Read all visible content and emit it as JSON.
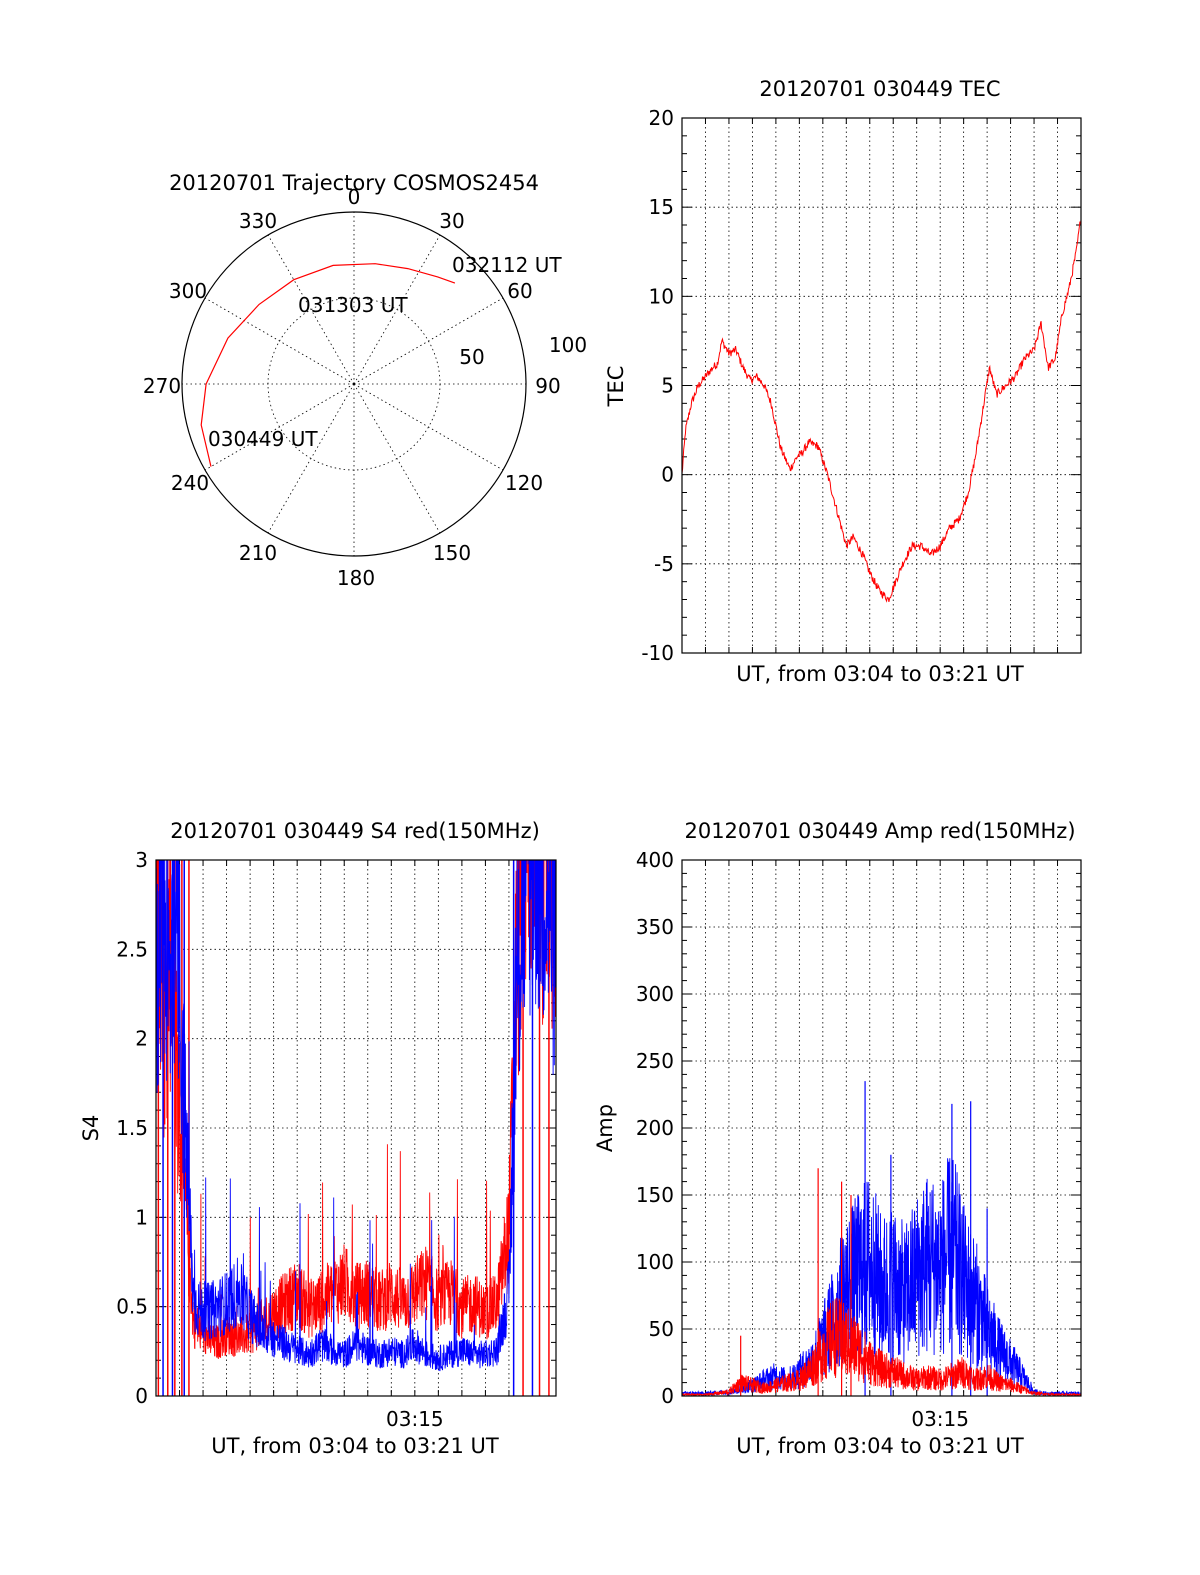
{
  "chart_data": [
    {
      "id": "polar",
      "type": "polar-trajectory",
      "title": "20120701 Trajectory COSMOS2454",
      "azimuth_labels": [
        "0",
        "30",
        "60",
        "90",
        "120",
        "150",
        "180",
        "210",
        "240",
        "270",
        "300",
        "330"
      ],
      "elevation_rings": [
        "50",
        "100"
      ],
      "grid": true,
      "line_color": "#ff0000",
      "trajectory": [
        {
          "az": 240,
          "r": 0.96
        },
        {
          "az": 255,
          "r": 0.92
        },
        {
          "az": 270,
          "r": 0.86
        },
        {
          "az": 290,
          "r": 0.78
        },
        {
          "az": 310,
          "r": 0.72
        },
        {
          "az": 330,
          "r": 0.7
        },
        {
          "az": 350,
          "r": 0.7
        },
        {
          "az": 10,
          "r": 0.71
        },
        {
          "az": 25,
          "r": 0.74
        },
        {
          "az": 38,
          "r": 0.79
        },
        {
          "az": 45,
          "r": 0.83
        }
      ],
      "annotations": [
        "030449 UT",
        "031303 UT",
        "032112 UT"
      ]
    },
    {
      "id": "tec",
      "type": "line",
      "title": "20120701 030449 TEC",
      "xlabel": "UT, from 03:04 to 03:21 UT",
      "ylabel": "TEC",
      "ylim": [
        -10,
        20
      ],
      "yticks": [
        "-10",
        "-5",
        "0",
        "5",
        "10",
        "15",
        "20"
      ],
      "xlim": [
        0,
        17
      ],
      "grid": true,
      "series": [
        {
          "color": "#ff0000",
          "x": [
            0,
            0.15,
            0.4,
            0.7,
            1.0,
            1.3,
            1.5,
            1.7,
            2.0,
            2.3,
            2.6,
            2.9,
            3.2,
            3.5,
            3.8,
            4.2,
            4.6,
            4.9,
            5.1,
            5.4,
            5.8,
            6.2,
            6.6,
            7.0,
            7.3,
            7.7,
            8.0,
            8.4,
            8.8,
            9.1,
            9.4,
            9.8,
            10.2,
            10.6,
            11.0,
            11.4,
            11.8,
            12.2,
            12.5,
            12.8,
            13.1,
            13.4,
            13.8,
            14.2,
            14.6,
            15.0,
            15.3,
            15.6,
            15.9,
            16.2,
            16.5,
            16.8,
            17.0
          ],
          "y": [
            0,
            2.5,
            4.0,
            5.0,
            5.5,
            6.0,
            6.2,
            7.5,
            6.8,
            7.0,
            6.0,
            5.3,
            5.5,
            5.0,
            4.0,
            1.5,
            0.3,
            1.0,
            1.2,
            1.8,
            1.6,
            0.0,
            -2.0,
            -4.0,
            -3.5,
            -4.5,
            -5.5,
            -6.5,
            -7.0,
            -6.0,
            -5.0,
            -4.0,
            -4.0,
            -4.5,
            -4.0,
            -3.0,
            -2.5,
            -1.0,
            1.0,
            3.5,
            6.0,
            4.5,
            5.0,
            5.5,
            6.5,
            7.0,
            8.5,
            6.0,
            6.5,
            9.0,
            10.5,
            12.5,
            14.5
          ]
        }
      ]
    },
    {
      "id": "s4",
      "type": "line",
      "title": "20120701 030449 S4 red(150MHz)",
      "xlabel": "UT, from 03:04 to 03:21 UT",
      "ylabel": "S4",
      "ylim": [
        0,
        3
      ],
      "yticks": [
        "0",
        "0.5",
        "1",
        "1.5",
        "2",
        "2.5",
        "3"
      ],
      "xticks": [
        {
          "x": 11,
          "label": "03:15"
        }
      ],
      "xlim": [
        0,
        17
      ],
      "grid": true,
      "series": [
        {
          "color": "#ff0000",
          "x": [
            0,
            0.3,
            0.6,
            0.9,
            1.2,
            1.6,
            2.0,
            2.5,
            3.0,
            3.5,
            4.0,
            4.5,
            5.0,
            5.5,
            6.0,
            6.5,
            7.0,
            7.5,
            8.0,
            8.5,
            9.0,
            9.5,
            10.0,
            10.5,
            11.0,
            11.5,
            12.0,
            12.5,
            13.0,
            13.5,
            14.0,
            14.5,
            15.0,
            15.3,
            15.6,
            16.0,
            16.5,
            17.0
          ],
          "y": [
            2.5,
            1.8,
            2.2,
            1.5,
            1.0,
            0.35,
            0.3,
            0.25,
            0.3,
            0.28,
            0.3,
            0.35,
            0.4,
            0.45,
            0.5,
            0.42,
            0.45,
            0.5,
            0.55,
            0.48,
            0.5,
            0.45,
            0.5,
            0.45,
            0.5,
            0.55,
            0.45,
            0.5,
            0.42,
            0.45,
            0.4,
            0.45,
            0.8,
            2.0,
            2.8,
            2.9,
            2.7,
            2.5
          ]
        },
        {
          "color": "#0000ff",
          "x": [
            0,
            0.3,
            0.6,
            0.9,
            1.2,
            1.6,
            2.0,
            2.5,
            3.0,
            3.5,
            4.0,
            4.5,
            5.0,
            5.5,
            6.0,
            6.5,
            7.0,
            7.5,
            8.0,
            8.5,
            9.0,
            9.5,
            10.0,
            10.5,
            11.0,
            11.5,
            12.0,
            12.5,
            13.0,
            13.5,
            14.0,
            14.5,
            15.0,
            15.3,
            15.6,
            16.0,
            16.5,
            17.0
          ],
          "y": [
            2.0,
            2.6,
            1.9,
            2.3,
            1.4,
            0.45,
            0.4,
            0.42,
            0.45,
            0.5,
            0.4,
            0.3,
            0.28,
            0.25,
            0.22,
            0.2,
            0.25,
            0.22,
            0.2,
            0.25,
            0.22,
            0.2,
            0.22,
            0.2,
            0.25,
            0.2,
            0.18,
            0.2,
            0.22,
            0.2,
            0.2,
            0.22,
            0.5,
            1.8,
            2.5,
            2.8,
            2.6,
            2.2
          ]
        }
      ]
    },
    {
      "id": "amp",
      "type": "line",
      "title": "20120701 030449 Amp red(150MHz)",
      "xlabel": "UT, from 03:04 to 03:21 UT",
      "ylabel": "Amp",
      "ylim": [
        0,
        400
      ],
      "yticks": [
        "0",
        "50",
        "100",
        "150",
        "200",
        "250",
        "300",
        "350",
        "400"
      ],
      "xticks": [
        {
          "x": 11,
          "label": "03:15"
        }
      ],
      "xlim": [
        0,
        17
      ],
      "grid": true,
      "series": [
        {
          "color": "#0000ff",
          "x": [
            0,
            1.0,
            2.0,
            3.0,
            3.5,
            4.0,
            4.5,
            5.0,
            5.5,
            6.0,
            6.5,
            7.0,
            7.5,
            8.0,
            8.5,
            9.0,
            9.5,
            10.0,
            10.5,
            11.0,
            11.5,
            12.0,
            12.5,
            13.0,
            13.5,
            14.0,
            14.5,
            15.0,
            15.5,
            16.0,
            17.0
          ],
          "y": [
            2,
            2,
            3,
            8,
            12,
            15,
            12,
            18,
            25,
            40,
            60,
            80,
            90,
            100,
            80,
            85,
            75,
            90,
            100,
            95,
            110,
            85,
            70,
            50,
            35,
            25,
            15,
            3,
            2,
            2,
            2
          ],
          "peaks": [
            {
              "x": 7.8,
              "y": 235
            },
            {
              "x": 8.9,
              "y": 180
            },
            {
              "x": 11.5,
              "y": 218
            },
            {
              "x": 12.3,
              "y": 220
            },
            {
              "x": 13.0,
              "y": 140
            }
          ]
        },
        {
          "color": "#ff0000",
          "x": [
            0,
            1.0,
            2.0,
            2.5,
            3.0,
            3.5,
            4.0,
            4.5,
            5.0,
            5.5,
            6.0,
            6.5,
            7.0,
            7.5,
            8.0,
            8.5,
            9.0,
            9.5,
            10.0,
            10.5,
            11.0,
            11.5,
            12.0,
            12.5,
            13.0,
            13.5,
            14.0,
            14.5,
            15.0,
            16.0,
            17.0
          ],
          "y": [
            1,
            1,
            3,
            10,
            8,
            6,
            8,
            10,
            12,
            20,
            35,
            45,
            40,
            35,
            25,
            20,
            18,
            15,
            12,
            14,
            12,
            15,
            18,
            12,
            15,
            10,
            8,
            5,
            2,
            1,
            1
          ],
          "peaks": [
            {
              "x": 2.5,
              "y": 45
            },
            {
              "x": 5.8,
              "y": 170
            },
            {
              "x": 6.8,
              "y": 160
            },
            {
              "x": 7.2,
              "y": 150
            }
          ]
        }
      ]
    }
  ]
}
